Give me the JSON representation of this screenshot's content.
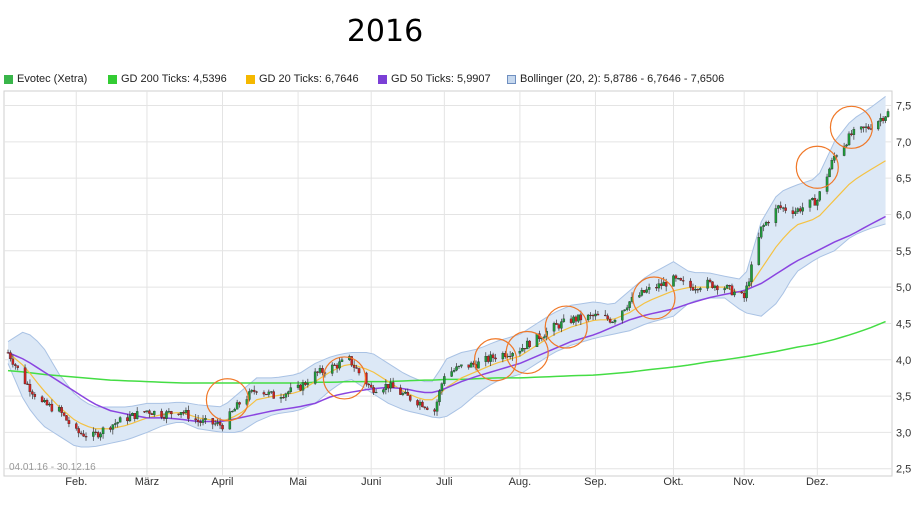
{
  "title": "2016",
  "legend": [
    {
      "label": "Evotec (Xetra)",
      "color": "#39b54a"
    },
    {
      "label": "GD 200 Ticks: 4,5396",
      "color": "#33cc33"
    },
    {
      "label": "GD 20 Ticks: 6,7646",
      "color": "#f5b800"
    },
    {
      "label": "GD 50 Ticks: 5,9907",
      "color": "#7b3fd6"
    },
    {
      "label": "Bollinger (20, 2): 5,8786 - 6,7646 - 7,6506",
      "color": "#c6d8ee"
    }
  ],
  "date_range": "04.01.16 - 30.12.16",
  "colors": {
    "up": "#1f9a3a",
    "down": "#cc2222",
    "gd200": "#44dd44",
    "gd20": "#f5c242",
    "gd50": "#8a44e0",
    "band_fill": "#dce8f6",
    "band_stroke": "#a9c2e4",
    "circle": "#f07828",
    "grid": "#e4e4e4"
  },
  "chart_data": {
    "type": "line",
    "title": "2016",
    "ylim": [
      2.4,
      7.7
    ],
    "y_ticks": [
      "2,5",
      "3,0",
      "3,5",
      "4,0",
      "4,5",
      "5,0",
      "5,5",
      "6,0",
      "6,5",
      "7,0",
      "7,5"
    ],
    "y_tick_values": [
      2.5,
      3.0,
      3.5,
      4.0,
      4.5,
      5.0,
      5.5,
      6.0,
      6.5,
      7.0,
      7.5
    ],
    "x_tick_labels": [
      "Feb.",
      "März",
      "April",
      "Mai",
      "Juni",
      "Juli",
      "Aug.",
      "Sep.",
      "Okt.",
      "Nov.",
      "Dez."
    ],
    "x_tick_dates": [
      "2016-02-01",
      "2016-03-01",
      "2016-04-01",
      "2016-05-02",
      "2016-06-01",
      "2016-07-01",
      "2016-08-01",
      "2016-09-01",
      "2016-10-03",
      "2016-11-01",
      "2016-12-01"
    ],
    "xlim": [
      "2016-01-04",
      "2016-12-30"
    ],
    "close_series": {
      "name": "Evotec (Xetra)",
      "x": [
        "2016-01-04",
        "2016-01-11",
        "2016-01-18",
        "2016-01-25",
        "2016-02-01",
        "2016-02-08",
        "2016-02-15",
        "2016-02-22",
        "2016-03-01",
        "2016-03-08",
        "2016-03-15",
        "2016-03-22",
        "2016-04-01",
        "2016-04-08",
        "2016-04-15",
        "2016-04-22",
        "2016-05-02",
        "2016-05-09",
        "2016-05-16",
        "2016-05-23",
        "2016-06-01",
        "2016-06-08",
        "2016-06-15",
        "2016-06-22",
        "2016-06-27",
        "2016-07-01",
        "2016-07-08",
        "2016-07-15",
        "2016-07-22",
        "2016-08-01",
        "2016-08-08",
        "2016-08-15",
        "2016-08-22",
        "2016-09-01",
        "2016-09-08",
        "2016-09-15",
        "2016-09-22",
        "2016-10-03",
        "2016-10-10",
        "2016-10-17",
        "2016-10-24",
        "2016-11-01",
        "2016-11-08",
        "2016-11-15",
        "2016-11-22",
        "2016-12-01",
        "2016-12-08",
        "2016-12-15",
        "2016-12-22",
        "2016-12-30"
      ],
      "values": [
        4.1,
        3.7,
        3.4,
        3.3,
        3.0,
        2.95,
        3.1,
        3.2,
        3.3,
        3.25,
        3.3,
        3.15,
        3.1,
        3.4,
        3.6,
        3.5,
        3.6,
        3.8,
        3.9,
        4.0,
        3.6,
        3.65,
        3.5,
        3.4,
        3.3,
        3.8,
        3.9,
        3.95,
        4.05,
        4.15,
        4.3,
        4.45,
        4.55,
        4.6,
        4.55,
        4.8,
        4.95,
        5.1,
        5.0,
        5.05,
        5.0,
        4.85,
        5.8,
        6.1,
        6.05,
        6.2,
        6.8,
        7.1,
        7.2,
        7.4
      ]
    },
    "gd200": {
      "name": "GD 200 Ticks",
      "values": [
        3.85,
        3.83,
        3.8,
        3.78,
        3.76,
        3.74,
        3.72,
        3.71,
        3.7,
        3.69,
        3.68,
        3.68,
        3.68,
        3.68,
        3.68,
        3.68,
        3.68,
        3.69,
        3.69,
        3.7,
        3.7,
        3.7,
        3.71,
        3.72,
        3.72,
        3.73,
        3.73,
        3.74,
        3.75,
        3.75,
        3.76,
        3.77,
        3.78,
        3.79,
        3.81,
        3.83,
        3.86,
        3.9,
        3.93,
        3.97,
        4.0,
        4.04,
        4.08,
        4.12,
        4.17,
        4.22,
        4.28,
        4.35,
        4.43,
        4.54
      ]
    },
    "gd20": {
      "name": "GD 20 Ticks",
      "values": [
        4.1,
        3.9,
        3.6,
        3.35,
        3.15,
        3.05,
        3.05,
        3.1,
        3.2,
        3.25,
        3.28,
        3.2,
        3.15,
        3.25,
        3.45,
        3.5,
        3.55,
        3.7,
        3.85,
        3.95,
        3.85,
        3.7,
        3.55,
        3.45,
        3.45,
        3.6,
        3.75,
        3.85,
        3.95,
        4.05,
        4.2,
        4.35,
        4.45,
        4.55,
        4.55,
        4.65,
        4.8,
        4.95,
        5.0,
        5.0,
        5.0,
        4.9,
        5.25,
        5.6,
        5.85,
        5.95,
        6.2,
        6.45,
        6.6,
        6.76
      ]
    },
    "gd50": {
      "name": "GD 50 Ticks",
      "values": [
        4.1,
        4.0,
        3.85,
        3.7,
        3.55,
        3.4,
        3.3,
        3.25,
        3.2,
        3.2,
        3.18,
        3.15,
        3.15,
        3.2,
        3.25,
        3.3,
        3.35,
        3.4,
        3.5,
        3.55,
        3.6,
        3.62,
        3.6,
        3.55,
        3.55,
        3.6,
        3.7,
        3.78,
        3.85,
        3.95,
        4.05,
        4.15,
        4.25,
        4.35,
        4.45,
        4.55,
        4.62,
        4.7,
        4.78,
        4.85,
        4.9,
        4.95,
        5.05,
        5.2,
        5.35,
        5.5,
        5.62,
        5.72,
        5.85,
        5.99
      ]
    },
    "bollinger_upper": [
      4.25,
      4.4,
      4.2,
      3.8,
      3.5,
      3.35,
      3.35,
      3.35,
      3.4,
      3.4,
      3.42,
      3.38,
      3.35,
      3.55,
      3.75,
      3.75,
      3.8,
      3.95,
      4.05,
      4.1,
      4.1,
      3.95,
      3.8,
      3.7,
      3.7,
      4.0,
      4.1,
      4.15,
      4.25,
      4.35,
      4.5,
      4.65,
      4.75,
      4.8,
      4.75,
      4.95,
      5.15,
      5.35,
      5.2,
      5.2,
      5.15,
      5.1,
      5.9,
      6.3,
      6.4,
      6.5,
      7.0,
      7.3,
      7.45,
      7.65
    ],
    "bollinger_lower": [
      3.95,
      3.4,
      3.1,
      2.95,
      2.8,
      2.8,
      2.85,
      2.9,
      3.0,
      3.1,
      3.15,
      3.05,
      3.0,
      3.0,
      3.15,
      3.25,
      3.3,
      3.4,
      3.6,
      3.75,
      3.55,
      3.4,
      3.3,
      3.25,
      3.2,
      3.2,
      3.35,
      3.55,
      3.7,
      3.8,
      3.95,
      4.1,
      4.2,
      4.3,
      4.35,
      4.4,
      4.5,
      4.6,
      4.8,
      4.85,
      4.85,
      4.65,
      4.6,
      4.8,
      5.2,
      5.4,
      5.5,
      5.7,
      5.8,
      5.88
    ],
    "circles": [
      {
        "date": "2016-04-03",
        "value": 3.45
      },
      {
        "date": "2016-05-21",
        "value": 3.75
      },
      {
        "date": "2016-07-22",
        "value": 4.0
      },
      {
        "date": "2016-08-04",
        "value": 4.1
      },
      {
        "date": "2016-08-20",
        "value": 4.45
      },
      {
        "date": "2016-09-25",
        "value": 4.85
      },
      {
        "date": "2016-12-01",
        "value": 6.65
      },
      {
        "date": "2016-12-15",
        "value": 7.2
      }
    ]
  }
}
